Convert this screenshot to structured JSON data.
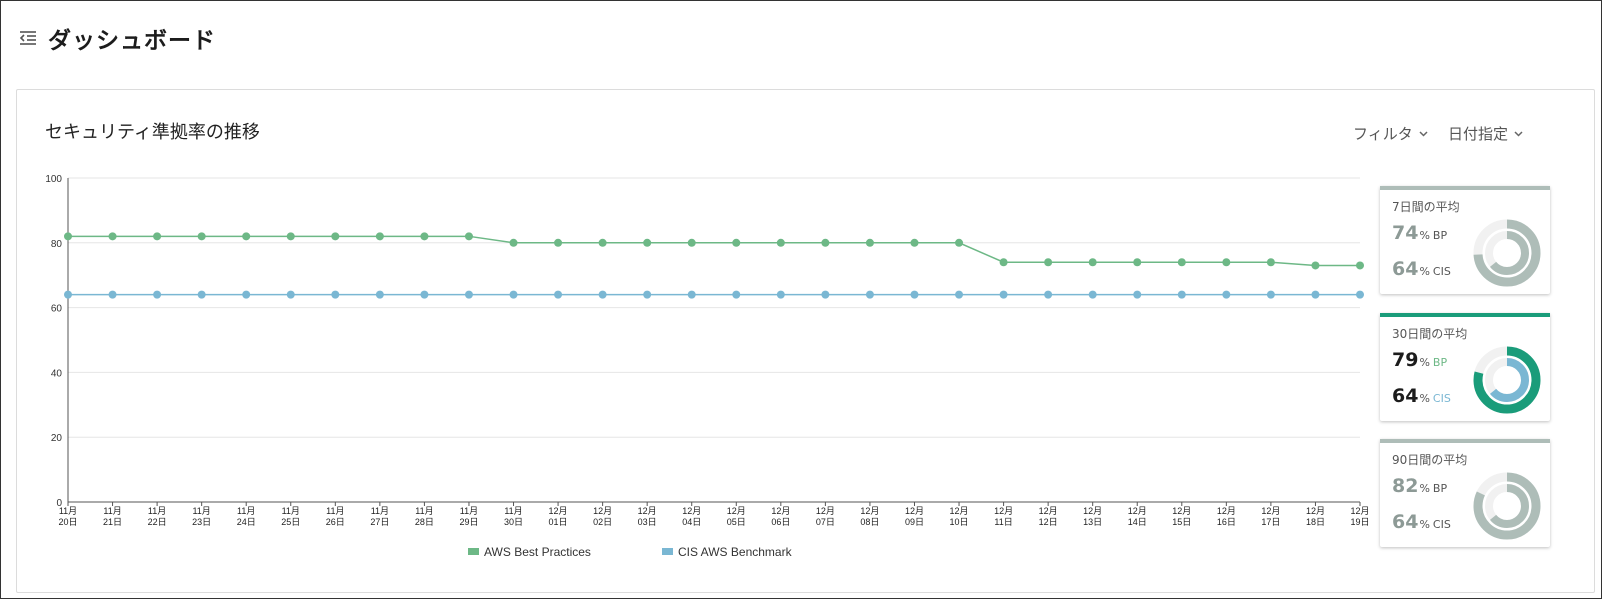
{
  "header": {
    "title": "ダッシュボード",
    "menu_icon": "menu-collapse-icon"
  },
  "card": {
    "title": "セキュリティ準拠率の推移",
    "filter_label": "フィルタ",
    "date_label": "日付指定"
  },
  "colors": {
    "bp": "#6db886",
    "cis": "#7ab7d3",
    "active_bar": "#1a9c7a",
    "inactive_bar": "#aebdb8",
    "dim_num": "#8d9a96",
    "active_num": "#1c1c1c"
  },
  "chart_data": {
    "type": "line",
    "categories": [
      "11月20日",
      "11月21日",
      "11月22日",
      "11月23日",
      "11月24日",
      "11月25日",
      "11月26日",
      "11月27日",
      "11月28日",
      "11月29日",
      "11月30日",
      "12月01日",
      "12月02日",
      "12月03日",
      "12月04日",
      "12月05日",
      "12月06日",
      "12月07日",
      "12月08日",
      "12月09日",
      "12月10日",
      "12月11日",
      "12月12日",
      "12月13日",
      "12月14日",
      "12月15日",
      "12月16日",
      "12月17日",
      "12月18日",
      "12月19日"
    ],
    "tick_top": [
      "11月",
      "11月",
      "11月",
      "11月",
      "11月",
      "11月",
      "11月",
      "11月",
      "11月",
      "11月",
      "11月",
      "12月",
      "12月",
      "12月",
      "12月",
      "12月",
      "12月",
      "12月",
      "12月",
      "12月",
      "12月",
      "12月",
      "12月",
      "12月",
      "12月",
      "12月",
      "12月",
      "12月",
      "12月",
      "12月"
    ],
    "tick_bottom": [
      "20日",
      "21日",
      "22日",
      "23日",
      "24日",
      "25日",
      "26日",
      "27日",
      "28日",
      "29日",
      "30日",
      "01日",
      "02日",
      "03日",
      "04日",
      "05日",
      "06日",
      "07日",
      "08日",
      "09日",
      "10日",
      "11日",
      "12日",
      "13日",
      "14日",
      "15日",
      "16日",
      "17日",
      "18日",
      "19日"
    ],
    "series": [
      {
        "name": "AWS Best Practices",
        "values": [
          82,
          82,
          82,
          82,
          82,
          82,
          82,
          82,
          82,
          82,
          80,
          80,
          80,
          80,
          80,
          80,
          80,
          80,
          80,
          80,
          80,
          74,
          74,
          74,
          74,
          74,
          74,
          74,
          73,
          73
        ]
      },
      {
        "name": "CIS AWS Benchmark",
        "values": [
          64,
          64,
          64,
          64,
          64,
          64,
          64,
          64,
          64,
          64,
          64,
          64,
          64,
          64,
          64,
          64,
          64,
          64,
          64,
          64,
          64,
          64,
          64,
          64,
          64,
          64,
          64,
          64,
          64,
          64
        ]
      }
    ],
    "ylim": [
      0,
      100
    ],
    "yticks": [
      "0",
      "20",
      "40",
      "60",
      "80",
      "100"
    ],
    "title": "セキュリティ準拠率の推移",
    "grid": true,
    "legend": "bottom-center"
  },
  "stats": [
    {
      "title": "7日間の平均",
      "bp": "74",
      "bp_value": 74,
      "cis": "64",
      "cis_value": 64,
      "pct": "%",
      "bp_tag": "BP",
      "cis_tag": "CIS",
      "active": false
    },
    {
      "title": "30日間の平均",
      "bp": "79",
      "bp_value": 79,
      "cis": "64",
      "cis_value": 64,
      "pct": "%",
      "bp_tag": "BP",
      "cis_tag": "CIS",
      "active": true
    },
    {
      "title": "90日間の平均",
      "bp": "82",
      "bp_value": 82,
      "cis": "64",
      "cis_value": 64,
      "pct": "%",
      "bp_tag": "BP",
      "cis_tag": "CIS",
      "active": false
    }
  ]
}
